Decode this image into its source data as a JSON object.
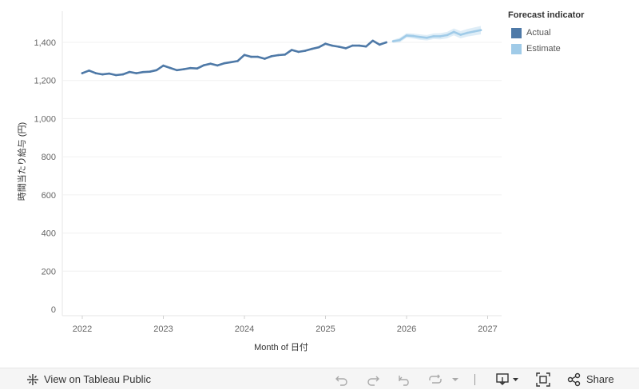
{
  "chart_data": {
    "type": "line",
    "title": "",
    "xlabel": "Month of 日付",
    "ylabel": "時間当たり給与 (円)",
    "x_ticks": [
      "2022",
      "2023",
      "2024",
      "2025",
      "2026",
      "2027"
    ],
    "y_ticks": [
      "0",
      "200",
      "400",
      "600",
      "800",
      "1,000",
      "1,200",
      "1,400"
    ],
    "ylim": [
      0,
      1400
    ],
    "grid": "horizontal",
    "legend_title": "Forecast indicator",
    "legend_position": "top-right",
    "series": [
      {
        "name": "Actual",
        "color": "#4e79a7",
        "x": [
          "2022-01",
          "2022-02",
          "2022-03",
          "2022-04",
          "2022-05",
          "2022-06",
          "2022-07",
          "2022-08",
          "2022-09",
          "2022-10",
          "2022-11",
          "2022-12",
          "2023-01",
          "2023-02",
          "2023-03",
          "2023-04",
          "2023-05",
          "2023-06",
          "2023-07",
          "2023-08",
          "2023-09",
          "2023-10",
          "2023-11",
          "2023-12",
          "2024-01",
          "2024-02",
          "2024-03",
          "2024-04",
          "2024-05",
          "2024-06",
          "2024-07",
          "2024-08",
          "2024-09",
          "2024-10",
          "2024-11",
          "2024-12",
          "2025-01",
          "2025-02",
          "2025-03",
          "2025-04",
          "2025-05",
          "2025-06",
          "2025-07",
          "2025-08",
          "2025-09",
          "2025-10"
        ],
        "values": [
          1238,
          1252,
          1238,
          1232,
          1236,
          1228,
          1232,
          1245,
          1238,
          1244,
          1246,
          1254,
          1278,
          1266,
          1254,
          1259,
          1265,
          1263,
          1280,
          1288,
          1279,
          1290,
          1296,
          1302,
          1334,
          1324,
          1324,
          1314,
          1327,
          1333,
          1336,
          1360,
          1350,
          1356,
          1366,
          1374,
          1393,
          1383,
          1377,
          1369,
          1383,
          1383,
          1378,
          1409,
          1388,
          1400
        ]
      },
      {
        "name": "Estimate",
        "color": "#a0cbe8",
        "x": [
          "2025-11",
          "2025-12",
          "2026-01",
          "2026-02",
          "2026-03",
          "2026-04",
          "2026-05",
          "2026-06",
          "2026-07",
          "2026-08",
          "2026-09",
          "2026-10",
          "2026-11",
          "2026-12"
        ],
        "values": [
          1406,
          1412,
          1436,
          1433,
          1428,
          1424,
          1432,
          1432,
          1438,
          1455,
          1440,
          1450,
          1457,
          1464
        ],
        "lower": [
          1398,
          1400,
          1424,
          1420,
          1414,
          1410,
          1417,
          1416,
          1421,
          1437,
          1421,
          1430,
          1436,
          1442
        ],
        "upper": [
          1414,
          1424,
          1448,
          1446,
          1442,
          1438,
          1447,
          1448,
          1455,
          1473,
          1459,
          1470,
          1478,
          1486
        ]
      }
    ]
  },
  "toolbar": {
    "view_label": "View on Tableau Public",
    "share_label": "Share"
  }
}
